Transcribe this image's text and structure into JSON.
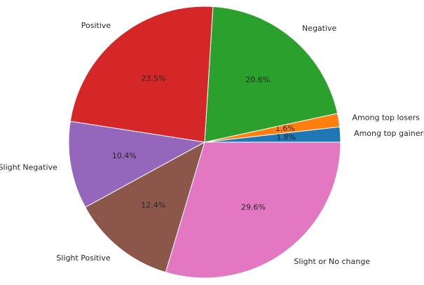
{
  "chart_data": {
    "type": "pie",
    "categories": [
      "Among top gainers",
      "Among top losers",
      "Negative",
      "Positive",
      "Slight Negative",
      "Slight Positive",
      "Slight or No change"
    ],
    "values": [
      1.8,
      1.6,
      20.6,
      23.5,
      10.4,
      12.4,
      29.6
    ],
    "value_labels": [
      "1.8%",
      "1.6%",
      "20.6%",
      "23.5%",
      "10.4%",
      "12.4%",
      "29.6%"
    ],
    "colors": [
      "#1f77b4",
      "#ff7f0e",
      "#2ca02c",
      "#d62728",
      "#9467bd",
      "#8c564b",
      "#e377c2"
    ]
  }
}
